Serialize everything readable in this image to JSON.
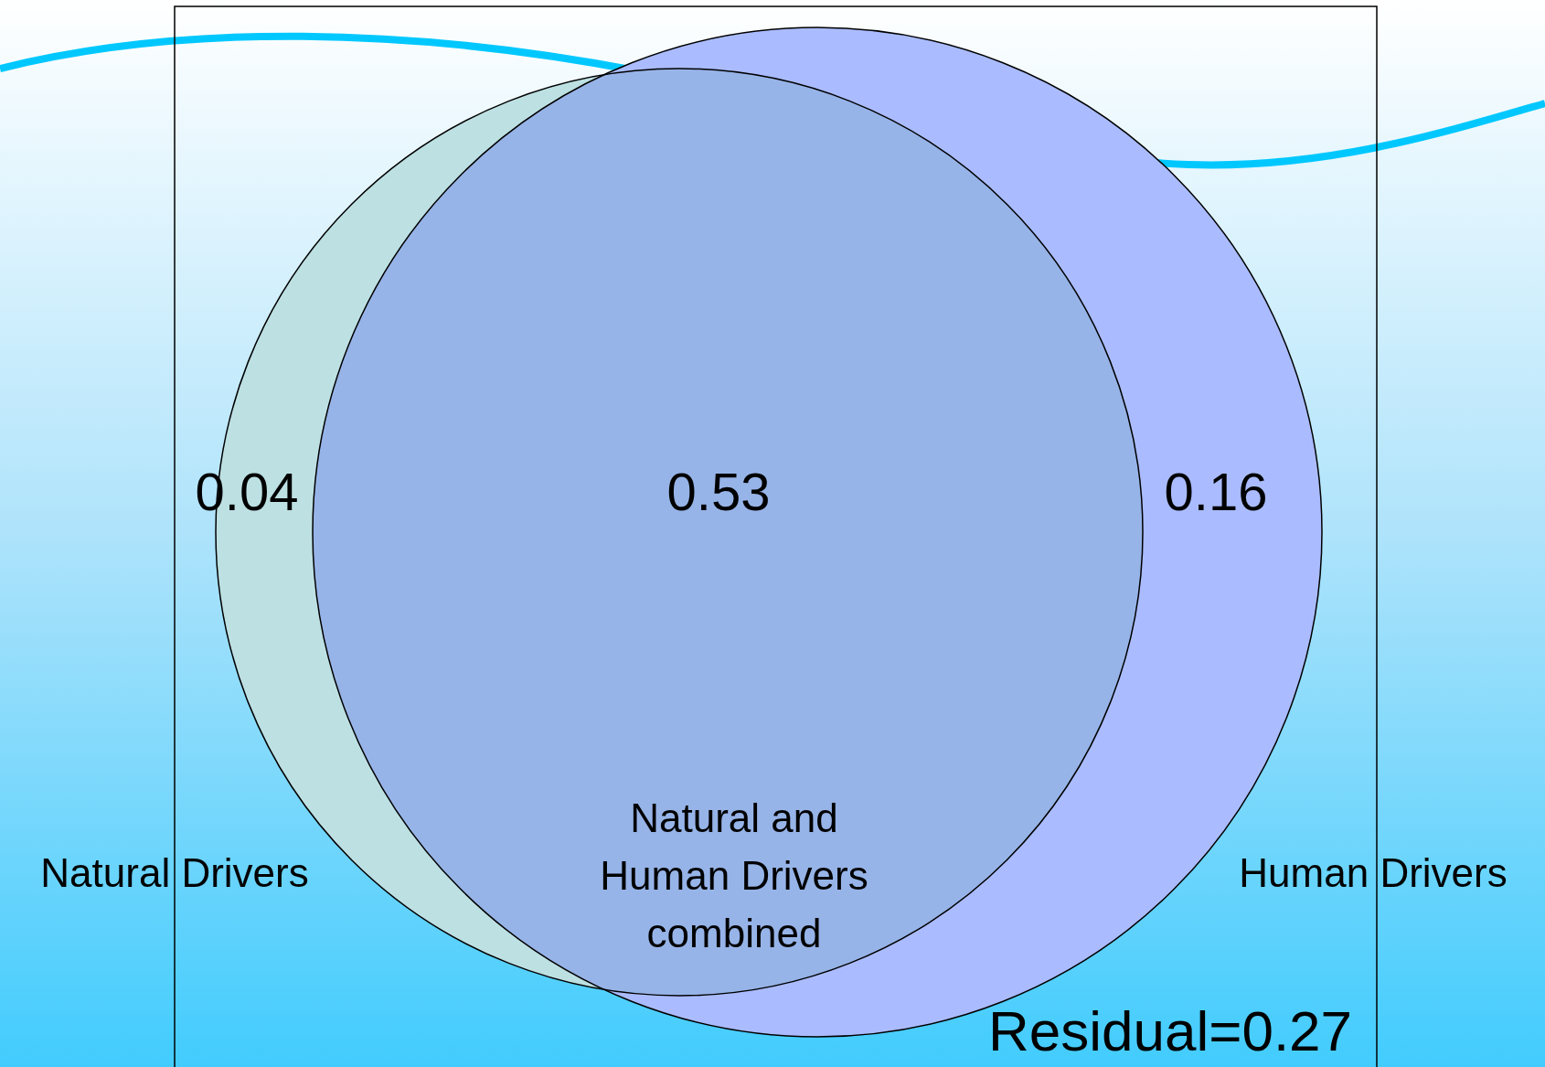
{
  "chart_data": {
    "type": "other",
    "categories": [
      "Natural Drivers",
      "Natural and Human Drivers combined",
      "Human Drivers"
    ],
    "values": [
      0.04,
      0.53,
      0.16
    ],
    "colors": [
      "#bde0e3",
      "#97b4e8",
      "#aabcff"
    ],
    "data_labels": true,
    "annotations": [
      "Residual=0.27"
    ]
  }
}
